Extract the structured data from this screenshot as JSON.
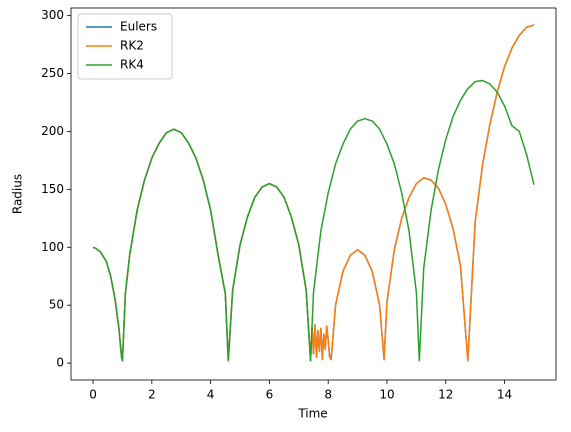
{
  "chart_data": {
    "type": "line",
    "xlabel": "Time",
    "ylabel": "Radius",
    "xlim": [
      -0.75,
      15.75
    ],
    "xticks": [
      0,
      2,
      4,
      6,
      8,
      10,
      12,
      14
    ],
    "ylim": [
      -14.6,
      306.6
    ],
    "yticks": [
      0,
      50,
      100,
      150,
      200,
      250,
      300
    ],
    "legend": "upper left",
    "series": [
      {
        "name": "Eulers",
        "color": "#1f77b4",
        "x": [
          0,
          0.1,
          0.25,
          0.45,
          0.6,
          0.75,
          0.88,
          0.97,
          1.0,
          1.1,
          1.25,
          1.5,
          1.75,
          2.0,
          2.25,
          2.5,
          2.75,
          3.0,
          3.25,
          3.5,
          3.75,
          4.0,
          4.25,
          4.5,
          4.6,
          4.75,
          5.0,
          5.25,
          5.5,
          5.75,
          6.0,
          6.25,
          6.5,
          6.75,
          7.0,
          7.25,
          7.4,
          7.45,
          7.5,
          7.55,
          7.6,
          7.65,
          7.7,
          7.75,
          7.8,
          7.85,
          7.9,
          7.95,
          8.0,
          8.05,
          8.1,
          8.25,
          8.5,
          8.75,
          9.0,
          9.25,
          9.5,
          9.75,
          9.9,
          10.0,
          10.25,
          10.5,
          10.75,
          11.0,
          11.25,
          11.5,
          11.75,
          12.0,
          12.25,
          12.5,
          12.75,
          13.0,
          13.25,
          13.5,
          13.75,
          14.0,
          14.25,
          14.5,
          14.75,
          15.0
        ],
        "values": [
          100,
          99,
          96,
          88,
          75,
          55,
          30,
          5,
          2,
          60,
          94,
          132,
          158,
          177,
          190,
          199,
          202,
          199,
          190,
          177,
          158,
          132,
          94,
          60,
          2,
          63,
          102,
          126,
          143,
          152,
          155,
          152,
          143,
          126,
          102,
          63,
          2,
          30,
          8,
          33,
          5,
          28,
          10,
          30,
          3,
          25,
          12,
          32,
          20,
          5,
          3,
          50,
          79,
          93,
          98,
          93,
          79,
          50,
          3,
          53,
          98,
          125,
          143,
          155,
          160,
          158,
          151,
          137,
          116,
          84,
          2,
          122,
          171,
          206,
          234,
          256,
          272,
          283,
          290,
          292
        ]
      },
      {
        "name": "RK2",
        "color": "#ff7f0e",
        "x": [
          0,
          0.1,
          0.25,
          0.45,
          0.6,
          0.75,
          0.88,
          0.97,
          1.0,
          1.1,
          1.25,
          1.5,
          1.75,
          2.0,
          2.25,
          2.5,
          2.75,
          3.0,
          3.25,
          3.5,
          3.75,
          4.0,
          4.25,
          4.5,
          4.6,
          4.75,
          5.0,
          5.25,
          5.5,
          5.75,
          6.0,
          6.25,
          6.5,
          6.75,
          7.0,
          7.25,
          7.4,
          7.45,
          7.5,
          7.55,
          7.6,
          7.65,
          7.7,
          7.75,
          7.8,
          7.85,
          7.9,
          7.95,
          8.0,
          8.05,
          8.1,
          8.25,
          8.5,
          8.75,
          9.0,
          9.25,
          9.5,
          9.75,
          9.9,
          10.0,
          10.25,
          10.5,
          10.75,
          11.0,
          11.25,
          11.5,
          11.75,
          12.0,
          12.25,
          12.5,
          12.75,
          13.0,
          13.25,
          13.5,
          13.75,
          14.0,
          14.25,
          14.5,
          14.75,
          15.0
        ],
        "values": [
          100,
          99,
          96,
          88,
          75,
          55,
          30,
          5,
          2,
          60,
          94,
          132,
          158,
          177,
          190,
          199,
          202,
          199,
          190,
          177,
          158,
          132,
          94,
          60,
          2,
          63,
          102,
          126,
          143,
          152,
          155,
          152,
          143,
          126,
          102,
          63,
          2,
          30,
          8,
          33,
          5,
          28,
          10,
          30,
          3,
          25,
          12,
          32,
          20,
          5,
          3,
          50,
          79,
          93,
          98,
          93,
          79,
          50,
          3,
          53,
          98,
          125,
          143,
          155,
          160,
          158,
          151,
          137,
          116,
          84,
          2,
          122,
          171,
          206,
          234,
          256,
          272,
          283,
          290,
          292
        ]
      },
      {
        "name": "RK4",
        "color": "#2ca02c",
        "x": [
          0,
          0.1,
          0.25,
          0.45,
          0.6,
          0.75,
          0.88,
          0.97,
          1.0,
          1.1,
          1.25,
          1.5,
          1.75,
          2.0,
          2.25,
          2.5,
          2.75,
          3.0,
          3.25,
          3.5,
          3.75,
          4.0,
          4.25,
          4.5,
          4.6,
          4.75,
          5.0,
          5.25,
          5.5,
          5.75,
          6.0,
          6.25,
          6.5,
          6.75,
          7.0,
          7.25,
          7.4,
          7.5,
          7.75,
          8.0,
          8.25,
          8.5,
          8.75,
          9.0,
          9.25,
          9.5,
          9.75,
          10.0,
          10.25,
          10.5,
          10.75,
          11.0,
          11.1,
          11.25,
          11.5,
          11.75,
          12.0,
          12.25,
          12.5,
          12.75,
          13.0,
          13.25,
          13.5,
          13.75,
          14.0,
          14.25,
          14.5,
          14.75,
          15.0
        ],
        "values": [
          100,
          99,
          96,
          88,
          75,
          55,
          30,
          5,
          2,
          60,
          94,
          132,
          158,
          177,
          190,
          199,
          202,
          199,
          190,
          177,
          158,
          132,
          94,
          60,
          2,
          63,
          102,
          126,
          143,
          152,
          155,
          152,
          143,
          126,
          102,
          63,
          2,
          61,
          114,
          147,
          172,
          189,
          202,
          209,
          211,
          209,
          202,
          189,
          172,
          147,
          114,
          61,
          2,
          82,
          132,
          167,
          193,
          213,
          227,
          237,
          243,
          244,
          241,
          234,
          222,
          205,
          200,
          180,
          154
        ]
      }
    ]
  }
}
